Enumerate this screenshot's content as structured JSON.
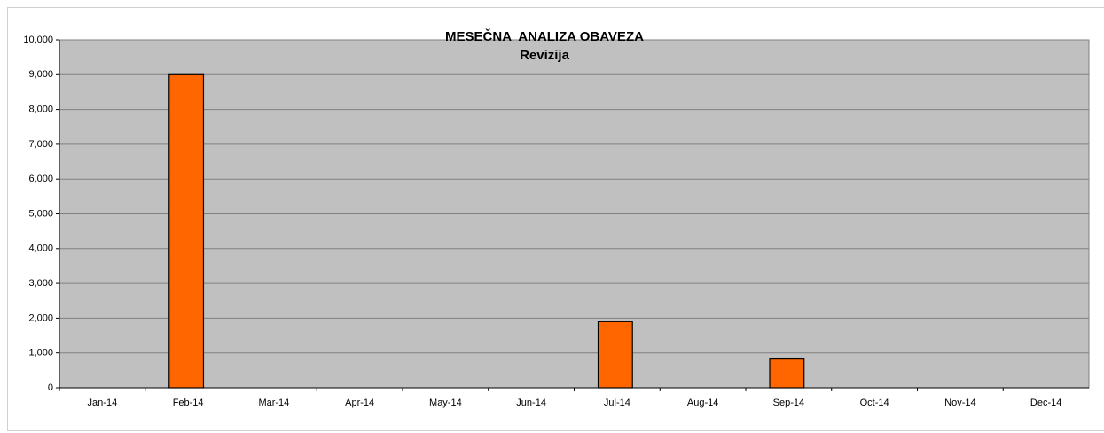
{
  "chart_data": {
    "type": "bar",
    "title": "MESEČNA  ANALIZA OBAVEZA",
    "subtitle": "Revizija",
    "categories": [
      "Jan-14",
      "Feb-14",
      "Mar-14",
      "Apr-14",
      "May-14",
      "Jun-14",
      "Jul-14",
      "Aug-14",
      "Sep-14",
      "Oct-14",
      "Nov-14",
      "Dec-14"
    ],
    "values": [
      0,
      9000,
      0,
      0,
      0,
      0,
      1900,
      0,
      850,
      0,
      0,
      0
    ],
    "color": "#ff6600",
    "plot_background": "#c0c0c0",
    "ylim": [
      0,
      10000
    ],
    "yticks": [
      0,
      {
        "value": 1000,
        "label": "1,000"
      },
      {
        "value": 2000,
        "label": "2,000"
      },
      {
        "value": 3000,
        "label": "3,000"
      },
      {
        "value": 4000,
        "label": "4,000"
      },
      {
        "value": 5000,
        "label": "5,000"
      },
      {
        "value": 6000,
        "label": "6,000"
      },
      {
        "value": 7000,
        "label": "7,000"
      },
      {
        "value": 8000,
        "label": "8,000"
      },
      {
        "value": 9000,
        "label": "9,000"
      },
      {
        "value": 10000,
        "label": "10,000"
      }
    ],
    "grid": true
  }
}
